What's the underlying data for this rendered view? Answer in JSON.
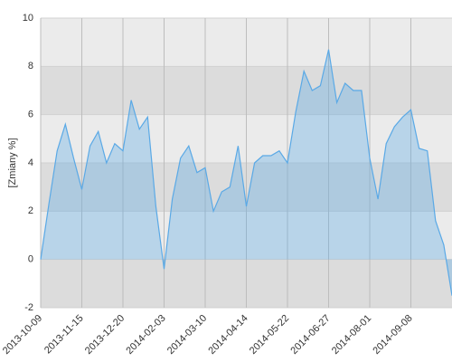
{
  "chart_data": {
    "type": "area",
    "y_label": "[Zmiany %]",
    "categories": [
      "2013-10-09",
      null,
      null,
      null,
      null,
      "2013-11-15",
      null,
      null,
      null,
      null,
      "2013-12-20",
      null,
      null,
      null,
      null,
      "2014-02-03",
      null,
      null,
      null,
      null,
      "2014-03-10",
      null,
      null,
      null,
      null,
      "2014-04-14",
      null,
      null,
      null,
      null,
      "2014-05-22",
      null,
      null,
      null,
      null,
      "2014-06-27",
      null,
      null,
      null,
      null,
      "2014-08-01",
      null,
      null,
      null,
      null,
      "2014-09-08",
      null,
      null,
      null,
      null,
      null
    ],
    "values": [
      0,
      2.3,
      4.5,
      5.6,
      4.2,
      2.9,
      4.7,
      5.3,
      4.0,
      4.8,
      4.5,
      6.6,
      5.4,
      5.9,
      2.2,
      -0.4,
      2.5,
      4.2,
      4.7,
      3.6,
      3.8,
      2.0,
      2.8,
      3.0,
      4.7,
      2.2,
      4.0,
      4.3,
      4.3,
      4.5,
      4.0,
      6.1,
      7.8,
      7.0,
      7.2,
      8.7,
      6.5,
      7.3,
      7.0,
      7.0,
      4.2,
      2.5,
      4.8,
      5.5,
      5.9,
      6.2,
      4.6,
      4.5,
      1.6,
      0.6,
      -1.5
    ],
    "color": "#5aa9e6",
    "ylim": [
      -2,
      10
    ],
    "yticks": [
      -2,
      0,
      2,
      4,
      6,
      8,
      10
    ],
    "grid": true
  }
}
